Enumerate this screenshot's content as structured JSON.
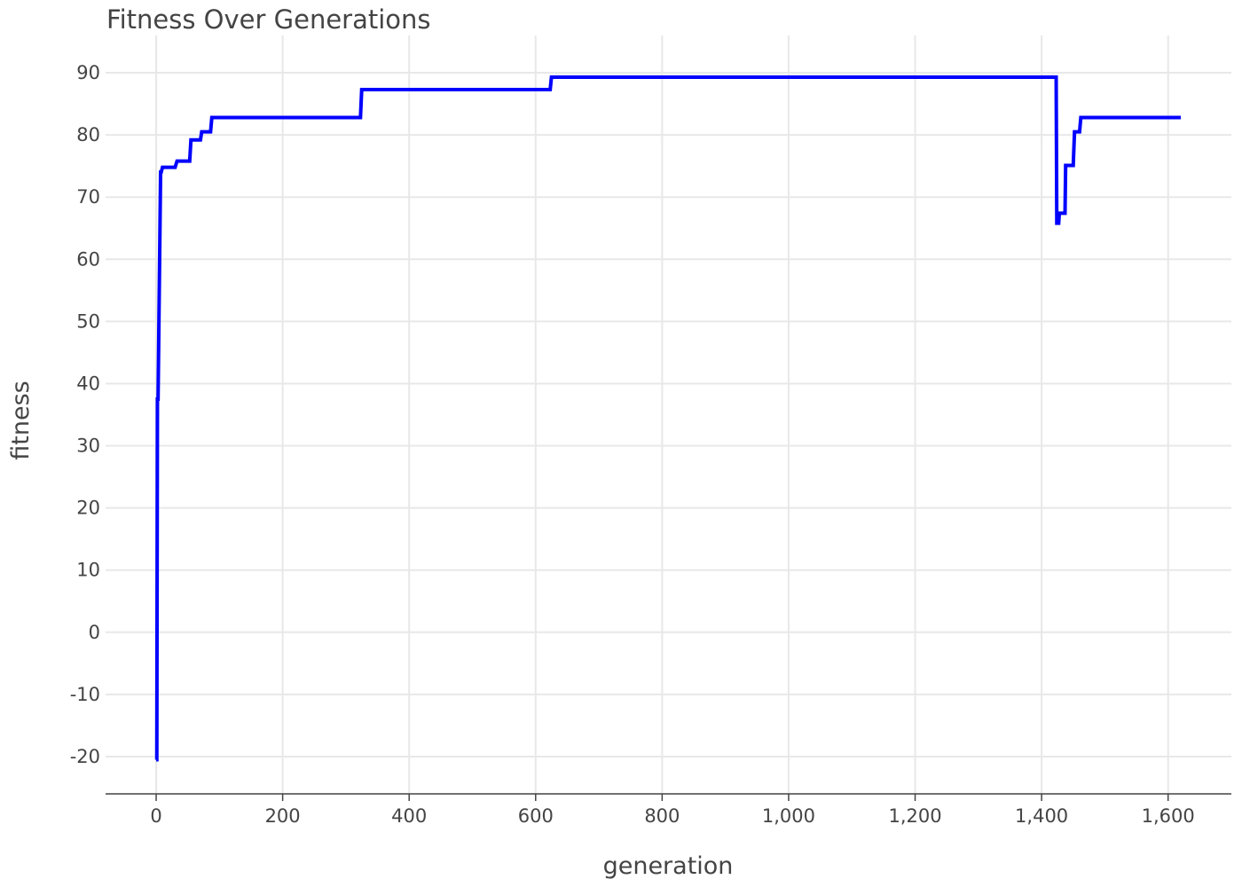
{
  "chart_data": {
    "type": "line",
    "title": "Fitness Over Generations",
    "xlabel": "generation",
    "ylabel": "fitness",
    "xlim": [
      -80,
      1700
    ],
    "ylim": [
      -26,
      96
    ],
    "x_ticks": [
      0,
      200,
      400,
      600,
      800,
      1000,
      1200,
      1400,
      1600
    ],
    "x_tick_labels": [
      "0",
      "200",
      "400",
      "600",
      "800",
      "1,000",
      "1,200",
      "1,400",
      "1,600"
    ],
    "y_ticks": [
      -20,
      -10,
      0,
      10,
      20,
      30,
      40,
      50,
      60,
      70,
      80,
      90
    ],
    "y_tick_labels": [
      "-20",
      "-10",
      "0",
      "10",
      "20",
      "30",
      "40",
      "50",
      "60",
      "70",
      "80",
      "90"
    ],
    "grid": true,
    "legend": false,
    "series": [
      {
        "color": "#0000ff",
        "x": [
          0,
          1,
          2,
          3,
          7,
          8,
          10,
          30,
          33,
          53,
          55,
          70,
          72,
          86,
          88,
          323,
          325,
          623,
          625,
          1423,
          1424,
          1427,
          1428,
          1437,
          1438,
          1450,
          1452,
          1460,
          1462,
          1620
        ],
        "y": [
          -20.5,
          -20.5,
          37.5,
          37.5,
          74.0,
          74.0,
          74.8,
          74.8,
          75.8,
          75.8,
          79.2,
          79.2,
          80.5,
          80.5,
          82.8,
          82.8,
          87.3,
          87.3,
          89.3,
          89.3,
          65.8,
          65.8,
          67.4,
          67.4,
          75.1,
          75.1,
          80.5,
          80.5,
          82.8,
          82.8
        ]
      }
    ]
  }
}
